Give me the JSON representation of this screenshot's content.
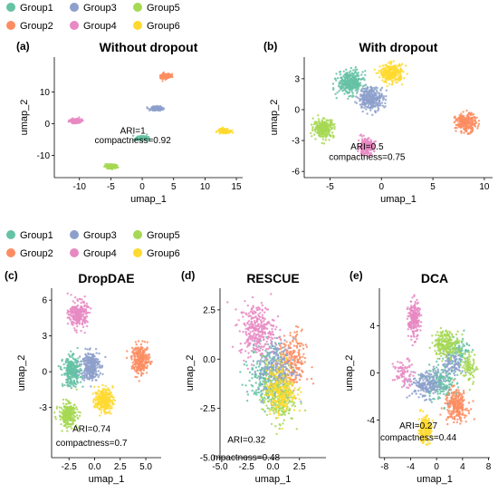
{
  "legends": [
    {
      "items": [
        {
          "name": "Group1",
          "color": "#66c2a5"
        },
        {
          "name": "Group3",
          "color": "#8da0cb"
        },
        {
          "name": "Group5",
          "color": "#a6d854"
        },
        {
          "name": "Group2",
          "color": "#fc8d62"
        },
        {
          "name": "Group4",
          "color": "#e78ac3"
        },
        {
          "name": "Group6",
          "color": "#ffd92f"
        }
      ]
    },
    {
      "items": [
        {
          "name": "Group1",
          "color": "#66c2a5"
        },
        {
          "name": "Group3",
          "color": "#8da0cb"
        },
        {
          "name": "Group5",
          "color": "#a6d854"
        },
        {
          "name": "Group2",
          "color": "#fc8d62"
        },
        {
          "name": "Group4",
          "color": "#e78ac3"
        },
        {
          "name": "Group6",
          "color": "#ffd92f"
        }
      ]
    }
  ],
  "chart_data": [
    {
      "type": "scatter",
      "panel": "(a)",
      "title": "Without dropout",
      "xlabel": "umap_1",
      "ylabel": "umap_2",
      "xlim": [
        -14,
        16
      ],
      "ylim": [
        -17,
        21
      ],
      "xticks": [
        -10,
        -5,
        0,
        5,
        10,
        15
      ],
      "yticks": [
        -10,
        0,
        10
      ],
      "annotations": [
        {
          "text": "ARI=1",
          "x": -1.5,
          "y": -2.3
        },
        {
          "text": "compactness=0.92",
          "x": -1.5,
          "y": -5.3
        }
      ],
      "series": [
        {
          "group": "Group1",
          "clusters": [
            {
              "x": 0.0,
              "y": -4.5,
              "sx": 0.8,
              "sy": 0.6,
              "n": 200
            }
          ]
        },
        {
          "group": "Group2",
          "clusters": [
            {
              "x": 3.8,
              "y": 15.0,
              "sx": 0.8,
              "sy": 0.6,
              "n": 200
            }
          ]
        },
        {
          "group": "Group3",
          "clusters": [
            {
              "x": 2.3,
              "y": 4.8,
              "sx": 0.8,
              "sy": 0.6,
              "n": 200
            }
          ]
        },
        {
          "group": "Group4",
          "clusters": [
            {
              "x": -10.5,
              "y": 0.8,
              "sx": 0.8,
              "sy": 0.6,
              "n": 200
            }
          ]
        },
        {
          "group": "Group5",
          "clusters": [
            {
              "x": -5.0,
              "y": -13.5,
              "sx": 0.8,
              "sy": 0.6,
              "n": 200
            }
          ]
        },
        {
          "group": "Group6",
          "clusters": [
            {
              "x": 13.0,
              "y": -2.3,
              "sx": 0.8,
              "sy": 0.6,
              "n": 200
            }
          ]
        }
      ]
    },
    {
      "type": "scatter",
      "panel": "(b)",
      "title": "With dropout",
      "xlabel": "umap_1",
      "ylabel": "umap_2",
      "xlim": [
        -7.5,
        10.8
      ],
      "ylim": [
        -6.6,
        5.1
      ],
      "xticks": [
        -5,
        0,
        5,
        10
      ],
      "yticks": [
        -6,
        -3,
        0,
        3
      ],
      "annotations": [
        {
          "text": "ARI=0.5",
          "x": -1.4,
          "y": -3.6
        },
        {
          "text": "compactness=0.75",
          "x": -1.4,
          "y": -4.6
        }
      ],
      "series": [
        {
          "group": "Group1",
          "clusters": [
            {
              "x": -3.0,
              "y": 2.6,
              "sx": 1.1,
              "sy": 1.0,
              "n": 350
            }
          ]
        },
        {
          "group": "Group2",
          "clusters": [
            {
              "x": 8.2,
              "y": -1.3,
              "sx": 0.9,
              "sy": 0.8,
              "n": 250
            }
          ]
        },
        {
          "group": "Group3",
          "clusters": [
            {
              "x": -1.0,
              "y": 1.1,
              "sx": 1.1,
              "sy": 1.0,
              "n": 300
            }
          ]
        },
        {
          "group": "Group4",
          "clusters": [
            {
              "x": -1.5,
              "y": -3.6,
              "sx": 0.7,
              "sy": 0.7,
              "n": 220
            }
          ]
        },
        {
          "group": "Group5",
          "clusters": [
            {
              "x": -5.6,
              "y": -1.8,
              "sx": 0.9,
              "sy": 0.8,
              "n": 250
            }
          ]
        },
        {
          "group": "Group6",
          "clusters": [
            {
              "x": 1.0,
              "y": 3.5,
              "sx": 1.0,
              "sy": 0.8,
              "n": 280
            }
          ]
        }
      ]
    },
    {
      "type": "scatter",
      "panel": "(c)",
      "title": "DropDAE",
      "xlabel": "umap_1",
      "ylabel": "umap_2",
      "xlim": [
        -4.2,
        6.5
      ],
      "ylim": [
        -7.2,
        7.0
      ],
      "xticks": [
        -2.5,
        0.0,
        2.5,
        5.0
      ],
      "yticks": [
        -3,
        0,
        3,
        6
      ],
      "annotations": [
        {
          "text": "ARI=0.74",
          "x": -0.3,
          "y": -4.8
        },
        {
          "text": "compactness=0.7",
          "x": -0.3,
          "y": -6.0
        }
      ],
      "series": [
        {
          "group": "Group1",
          "clusters": [
            {
              "x": -2.2,
              "y": 0.0,
              "sx": 0.8,
              "sy": 1.1,
              "n": 300
            }
          ]
        },
        {
          "group": "Group2",
          "clusters": [
            {
              "x": 4.5,
              "y": 1.0,
              "sx": 0.8,
              "sy": 1.1,
              "n": 250
            }
          ]
        },
        {
          "group": "Group3",
          "clusters": [
            {
              "x": -0.4,
              "y": 0.5,
              "sx": 0.8,
              "sy": 1.1,
              "n": 300
            }
          ]
        },
        {
          "group": "Group4",
          "clusters": [
            {
              "x": -1.6,
              "y": 4.8,
              "sx": 0.8,
              "sy": 1.0,
              "n": 250
            }
          ]
        },
        {
          "group": "Group5",
          "clusters": [
            {
              "x": -2.6,
              "y": -3.6,
              "sx": 0.8,
              "sy": 0.9,
              "n": 250
            }
          ]
        },
        {
          "group": "Group6",
          "clusters": [
            {
              "x": 0.9,
              "y": -2.4,
              "sx": 0.8,
              "sy": 0.9,
              "n": 250
            }
          ]
        }
      ]
    },
    {
      "type": "scatter",
      "panel": "(d)",
      "title": "RESCUE",
      "xlabel": "umap_1",
      "ylabel": "umap_2",
      "xlim": [
        -5.0,
        5.0
      ],
      "ylim": [
        -5.0,
        3.6
      ],
      "xticks": [
        -5.0,
        -2.5,
        0.0,
        2.5
      ],
      "yticks": [
        -5.0,
        -2.5,
        0.0,
        2.5
      ],
      "annotations": [
        {
          "text": "ARI=0.32",
          "x": -2.5,
          "y": -4.1
        },
        {
          "text": "mpactness=0.48",
          "x": -2.5,
          "y": -5.0
        }
      ],
      "series": [
        {
          "group": "Group1",
          "clusters": [
            {
              "x": -0.5,
              "y": -0.8,
              "sx": 1.6,
              "sy": 1.4,
              "n": 250
            }
          ]
        },
        {
          "group": "Group2",
          "clusters": [
            {
              "x": 1.8,
              "y": -0.2,
              "sx": 1.2,
              "sy": 1.4,
              "n": 220
            }
          ]
        },
        {
          "group": "Group3",
          "clusters": [
            {
              "x": 0.3,
              "y": -0.5,
              "sx": 1.5,
              "sy": 1.4,
              "n": 250
            }
          ]
        },
        {
          "group": "Group4",
          "clusters": [
            {
              "x": -1.5,
              "y": 1.5,
              "sx": 1.5,
              "sy": 1.2,
              "n": 300
            }
          ]
        },
        {
          "group": "Group5",
          "clusters": [
            {
              "x": 0.5,
              "y": -2.0,
              "sx": 1.4,
              "sy": 1.1,
              "n": 220
            }
          ]
        },
        {
          "group": "Group6",
          "clusters": [
            {
              "x": 0.8,
              "y": -1.5,
              "sx": 1.3,
              "sy": 1.2,
              "n": 220
            }
          ]
        }
      ]
    },
    {
      "type": "scatter",
      "panel": "(e)",
      "title": "DCA",
      "xlabel": "umap_1",
      "ylabel": "umap_2",
      "xlim": [
        -8.8,
        8.2
      ],
      "ylim": [
        -7.2,
        7.2
      ],
      "xticks": [
        -8,
        -4,
        0,
        4,
        8
      ],
      "yticks": [
        -4,
        0,
        4
      ],
      "annotations": [
        {
          "text": "ARI=0.27",
          "x": -2.8,
          "y": -4.5
        },
        {
          "text": "compactness=0.44",
          "x": -2.8,
          "y": -5.5
        }
      ],
      "series": [
        {
          "group": "Group1",
          "clusters": [
            {
              "x": 0.5,
              "y": -0.8,
              "sx": 2.0,
              "sy": 1.3,
              "n": 180
            },
            {
              "x": 3.5,
              "y": 1.8,
              "sx": 1.6,
              "sy": 1.2,
              "n": 100
            }
          ]
        },
        {
          "group": "Group2",
          "clusters": [
            {
              "x": 3.0,
              "y": -2.8,
              "sx": 1.6,
              "sy": 1.2,
              "n": 240
            }
          ]
        },
        {
          "group": "Group3",
          "clusters": [
            {
              "x": -1.5,
              "y": -1.0,
              "sx": 2.3,
              "sy": 1.0,
              "n": 200
            },
            {
              "x": 2.5,
              "y": 0.8,
              "sx": 1.5,
              "sy": 1.0,
              "n": 100
            }
          ]
        },
        {
          "group": "Group4",
          "clusters": [
            {
              "x": -3.5,
              "y": 4.5,
              "sx": 0.8,
              "sy": 1.4,
              "n": 220
            },
            {
              "x": -5.0,
              "y": 0.0,
              "sx": 1.5,
              "sy": 1.0,
              "n": 80
            }
          ]
        },
        {
          "group": "Group5",
          "clusters": [
            {
              "x": 1.5,
              "y": 2.5,
              "sx": 1.8,
              "sy": 1.0,
              "n": 220
            },
            {
              "x": 5.0,
              "y": 0.5,
              "sx": 1.0,
              "sy": 1.2,
              "n": 80
            }
          ]
        },
        {
          "group": "Group6",
          "clusters": [
            {
              "x": -1.8,
              "y": -4.8,
              "sx": 0.9,
              "sy": 1.0,
              "n": 200
            }
          ]
        }
      ]
    }
  ]
}
